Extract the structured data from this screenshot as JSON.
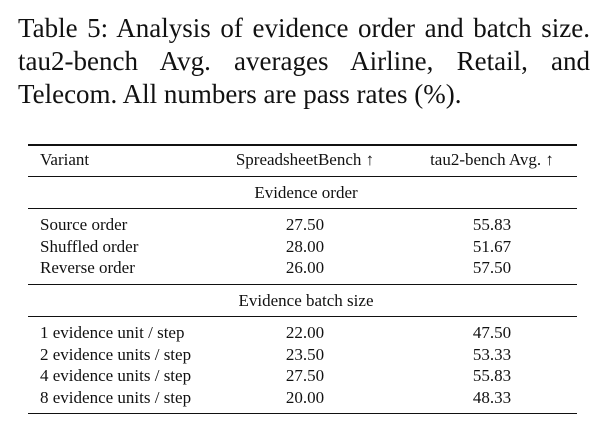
{
  "caption": "Table 5: Analysis of evidence order and batch size. tau2-bench Avg. averages Airline, Retail, and Telecom. All numbers are pass rates (%).",
  "table": {
    "header": [
      "Variant",
      "SpreadsheetBench ↑",
      "tau2-bench Avg. ↑"
    ],
    "sections": [
      {
        "title": "Evidence order",
        "rows": [
          [
            "Source order",
            "27.50",
            "55.83"
          ],
          [
            "Shuffled order",
            "28.00",
            "51.67"
          ],
          [
            "Reverse order",
            "26.00",
            "57.50"
          ]
        ]
      },
      {
        "title": "Evidence batch size",
        "rows": [
          [
            "1 evidence unit / step",
            "22.00",
            "47.50"
          ],
          [
            "2 evidence units / step",
            "23.50",
            "53.33"
          ],
          [
            "4 evidence units / step",
            "27.50",
            "55.83"
          ],
          [
            "8 evidence units / step",
            "20.00",
            "48.33"
          ]
        ]
      }
    ]
  }
}
